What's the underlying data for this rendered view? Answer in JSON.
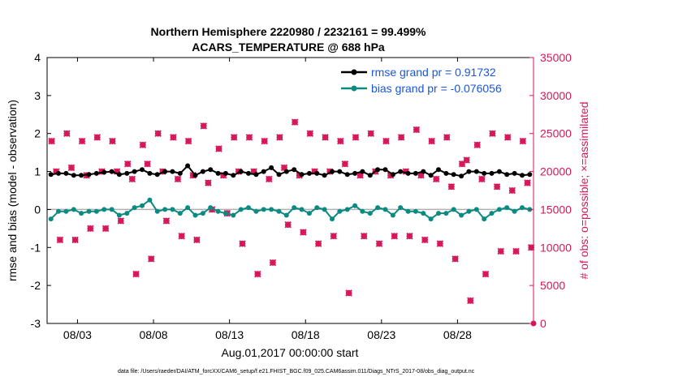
{
  "chart_data": {
    "type": "line",
    "title_line1": "Northern Hemisphere 2220980 / 2232161 = 99.499%",
    "title_line2": "ACARS_TEMPERATURE @ 688 hPa",
    "xlabel": "Aug.01,2017 00:00:00 start",
    "ylabel": "rmse and bias (model - observation)",
    "y2label": "# of obs: o=possible; ×=assimilated",
    "footer": "data file: /Users/raeder/DAI/ATM_forcXX/CAM6_setup/f.e21.FHIST_BGC.f09_025.CAM6assim.011/Diags_NTrS_2017-08/obs_diag_output.nc",
    "xlim": [
      1,
      33
    ],
    "x_ticks": [
      {
        "pos": 3,
        "label": "08/03"
      },
      {
        "pos": 8,
        "label": "08/08"
      },
      {
        "pos": 13,
        "label": "08/13"
      },
      {
        "pos": 18,
        "label": "08/18"
      },
      {
        "pos": 23,
        "label": "08/23"
      },
      {
        "pos": 28,
        "label": "08/28"
      }
    ],
    "ylim": [
      -3,
      4
    ],
    "y_ticks": [
      "4",
      "3",
      "2",
      "1",
      "0",
      "-1",
      "-2",
      "-3"
    ],
    "y2lim": [
      0,
      35000
    ],
    "y2_ticks": [
      "35000",
      "30000",
      "25000",
      "20000",
      "15000",
      "10000",
      "5000",
      "0"
    ],
    "legend": [
      {
        "label": "rmse grand pr = 0.91732",
        "color": "#000000"
      },
      {
        "label": "bias grand pr = -0.076056",
        "color": "#0a8a80"
      }
    ],
    "colors": {
      "rmse": "#000000",
      "bias": "#0a8a80",
      "obs": "#d6175a",
      "zero_line": "#b0b0b0",
      "y2_axis": "#d6175a"
    },
    "series_rmse_day": [
      0.92,
      0.95,
      0.9,
      0.95,
      1.0,
      0.95,
      1.05,
      0.92,
      1.0,
      1.15,
      1.0,
      0.95,
      0.9,
      0.95,
      1.0,
      0.92,
      1.05,
      0.95,
      0.9,
      1.0,
      0.95,
      0.9,
      1.05,
      1.0,
      0.95,
      0.9,
      0.95,
      0.88,
      1.0,
      0.95,
      0.92,
      0.9
    ],
    "series_rmse_night": [
      0.95,
      0.9,
      0.92,
      0.98,
      0.92,
      1.0,
      0.95,
      1.0,
      0.95,
      0.9,
      1.05,
      0.95,
      1.0,
      0.92,
      1.1,
      1.0,
      0.92,
      0.95,
      1.0,
      0.92,
      1.0,
      1.05,
      0.92,
      0.95,
      1.0,
      1.05,
      0.92,
      1.0,
      0.95,
      1.0,
      0.95,
      0.92
    ],
    "series_bias_day": [
      -0.25,
      -0.05,
      -0.1,
      -0.05,
      0.0,
      -0.1,
      0.1,
      -0.05,
      0.0,
      0.05,
      -0.1,
      -0.05,
      -0.15,
      0.05,
      0.0,
      -0.05,
      0.05,
      -0.1,
      0.0,
      -0.05,
      0.1,
      -0.1,
      0.0,
      0.05,
      -0.05,
      -0.25,
      -0.1,
      -0.15,
      0.0,
      -0.1,
      0.05,
      0.05
    ],
    "series_bias_night": [
      -0.05,
      0.0,
      -0.05,
      0.0,
      -0.15,
      0.05,
      0.25,
      0.0,
      -0.1,
      -0.15,
      0.05,
      -0.1,
      0.0,
      -0.05,
      0.0,
      -0.15,
      0.0,
      0.05,
      -0.25,
      0.0,
      -0.05,
      0.05,
      -0.15,
      -0.05,
      -0.1,
      -0.1,
      0.0,
      -0.05,
      -0.25,
      0.0,
      -0.05,
      0.0
    ],
    "obs_peak_day": [
      24000,
      25000,
      24000,
      24500,
      24000,
      21000,
      23500,
      25000,
      24500,
      24000,
      26000,
      23000,
      24500,
      24500,
      24000,
      24500,
      26500,
      25000,
      24500,
      24000,
      24500,
      25000,
      24000,
      24500,
      25500,
      24000,
      24500,
      21000,
      23500,
      25000,
      24500,
      24000
    ],
    "obs_mid_day": [
      20000,
      20500,
      19500,
      20000,
      20000,
      19000,
      21000,
      20000,
      19000,
      19500,
      18500,
      19500,
      20000,
      20000,
      19000,
      20500,
      19500,
      20000,
      20000,
      21000,
      19500,
      20000,
      19500,
      20000,
      19500,
      19000,
      18000,
      21500,
      19000,
      18000,
      17500,
      18500
    ],
    "obs_low_night": [
      11000,
      11000,
      12500,
      12500,
      13500,
      6500,
      8500,
      13500,
      11500,
      11000,
      15000,
      14500,
      10500,
      6500,
      8000,
      13000,
      12000,
      10500,
      11500,
      4000,
      11500,
      10500,
      11500,
      11500,
      11000,
      10500,
      8500,
      3000,
      6500,
      9500,
      9500,
      10000
    ]
  }
}
